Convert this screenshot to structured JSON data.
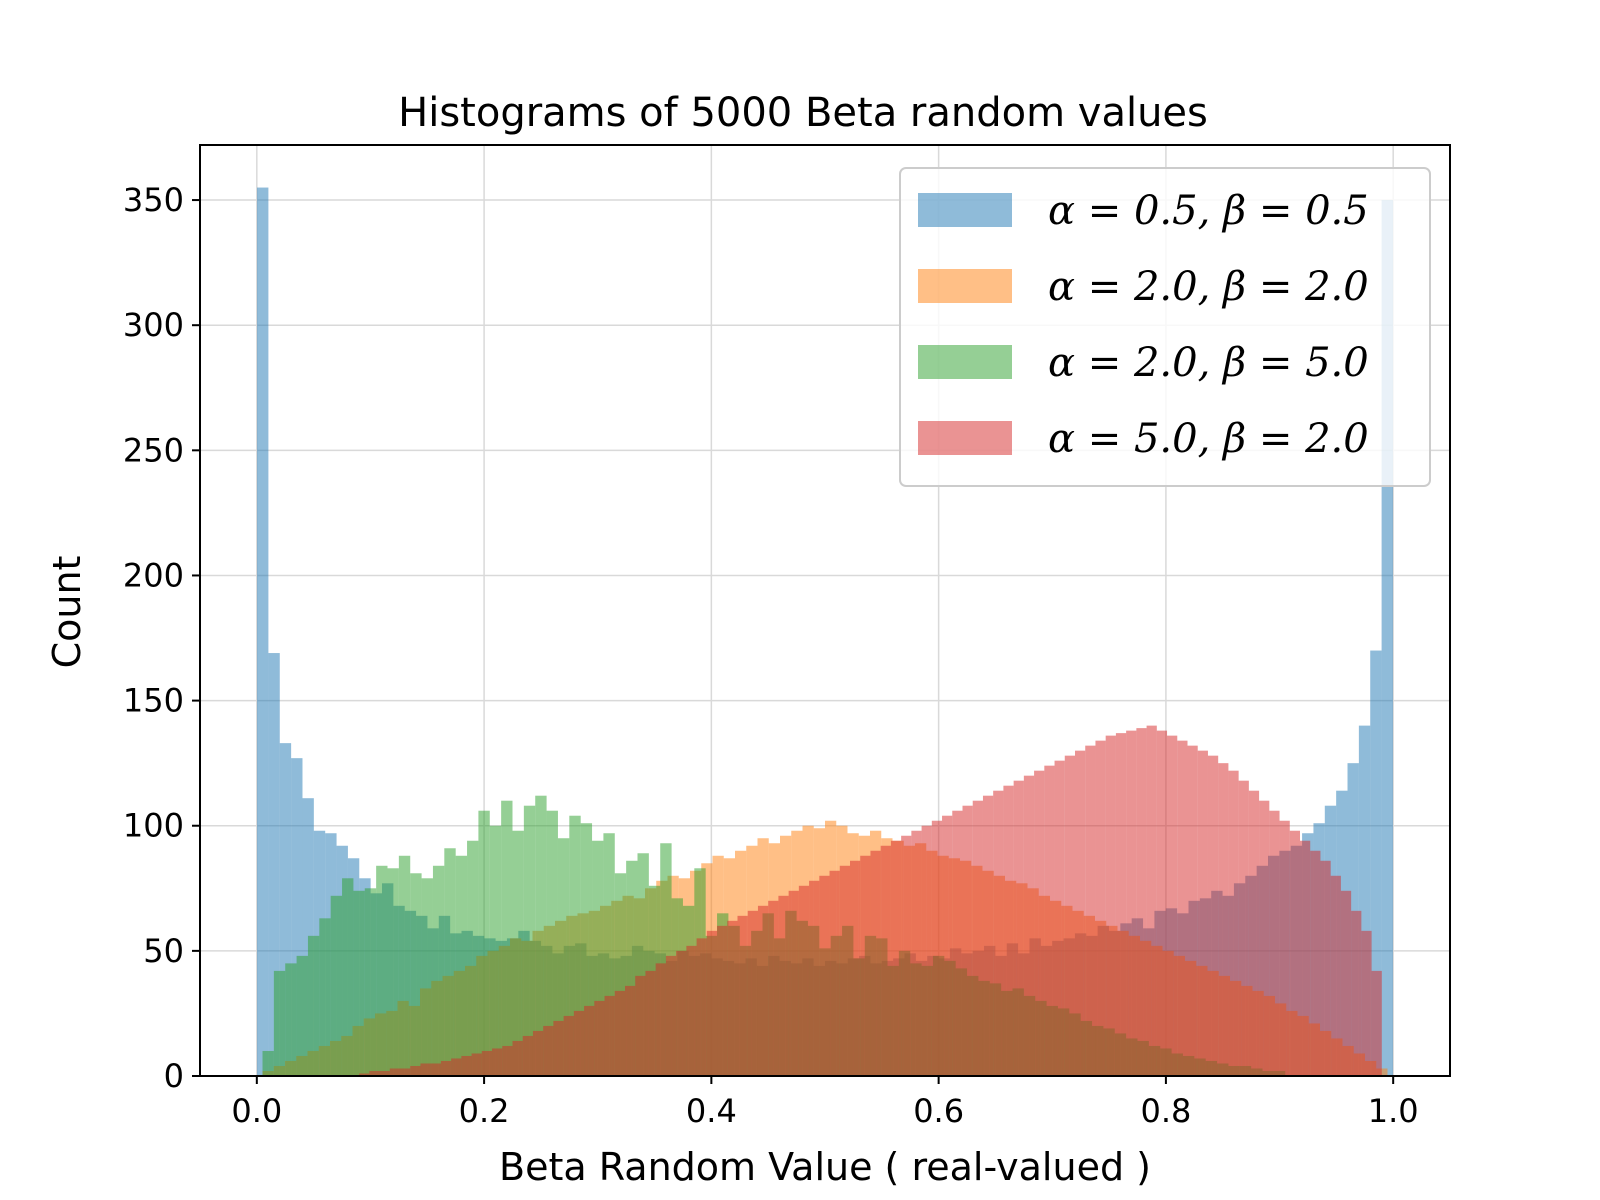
{
  "chart_data": {
    "type": "bar",
    "subtype": "histogram",
    "title": "Histograms of 5000 Beta random values",
    "xlabel": "Beta Random Value ( real-valued )",
    "ylabel": "Count",
    "xlim": [
      -0.05,
      1.05
    ],
    "ylim": [
      0,
      372
    ],
    "xticks": [
      "0.0",
      "0.2",
      "0.4",
      "0.6",
      "0.8",
      "1.0"
    ],
    "yticks": [
      "0",
      "50",
      "100",
      "150",
      "200",
      "250",
      "300",
      "350"
    ],
    "grid": true,
    "legend_position": "top-right",
    "bin_count": 100,
    "series": [
      {
        "name": "α = 0.5, β = 0.5",
        "color": "#1f77b4",
        "opacity": 0.5,
        "range": [
          0.0002,
          0.9998
        ],
        "values": [
          355,
          169,
          133,
          127,
          111,
          98,
          97,
          92,
          87,
          79,
          73,
          77,
          68,
          66,
          64,
          59,
          64,
          57,
          58,
          56,
          55,
          54,
          55,
          58,
          54,
          52,
          49,
          52,
          53,
          48,
          49,
          47,
          48,
          52,
          50,
          49,
          46,
          50,
          48,
          49,
          47,
          46,
          45,
          47,
          44,
          48,
          46,
          45,
          47,
          44,
          46,
          45,
          47,
          48,
          45,
          46,
          47,
          49,
          46,
          48,
          47,
          51,
          49,
          50,
          52,
          48,
          53,
          49,
          55,
          52,
          54,
          55,
          57,
          56,
          60,
          58,
          61,
          63,
          59,
          66,
          67,
          65,
          70,
          71,
          74,
          72,
          77,
          80,
          84,
          88,
          90,
          92,
          97,
          101,
          108,
          114,
          125,
          140,
          170,
          350
        ]
      },
      {
        "name": "α = 2.0, β = 2.0",
        "color": "#ff7f0e",
        "opacity": 0.5,
        "range": [
          0.005,
          0.995
        ],
        "values": [
          2,
          4,
          6,
          8,
          10,
          12,
          14,
          16,
          20,
          23,
          25,
          26,
          30,
          28,
          35,
          38,
          40,
          42,
          44,
          48,
          50,
          52,
          55,
          54,
          58,
          60,
          62,
          64,
          65,
          66,
          68,
          70,
          72,
          71,
          75,
          78,
          80,
          79,
          82,
          85,
          88,
          87,
          90,
          92,
          95,
          93,
          96,
          98,
          100,
          99,
          102,
          100,
          97,
          96,
          98,
          95,
          94,
          92,
          93,
          90,
          88,
          87,
          86,
          84,
          82,
          80,
          78,
          77,
          75,
          72,
          70,
          68,
          66,
          64,
          62,
          60,
          58,
          56,
          54,
          52,
          50,
          48,
          46,
          44,
          42,
          40,
          38,
          36,
          34,
          32,
          29,
          26,
          24,
          21,
          18,
          15,
          12,
          9,
          6,
          3
        ]
      },
      {
        "name": "α = 2.0, β = 5.0",
        "color": "#2ca02c",
        "opacity": 0.5,
        "range": [
          0.005,
          0.905
        ],
        "values": [
          10,
          42,
          45,
          48,
          56,
          63,
          72,
          79,
          74,
          75,
          84,
          83,
          88,
          81,
          79,
          84,
          91,
          88,
          94,
          106,
          100,
          110,
          98,
          108,
          112,
          106,
          95,
          104,
          101,
          94,
          97,
          81,
          86,
          89,
          76,
          93,
          71,
          68,
          83,
          56,
          65,
          60,
          52,
          58,
          65,
          55,
          66,
          62,
          60,
          51,
          56,
          60,
          47,
          56,
          55,
          44,
          50,
          45,
          44,
          48,
          46,
          43,
          40,
          38,
          37,
          34,
          35,
          32,
          30,
          28,
          27,
          25,
          22,
          20,
          19,
          17,
          15,
          14,
          12,
          11,
          9,
          8,
          7,
          6,
          5,
          4,
          4,
          3,
          2,
          2
        ]
      },
      {
        "name": "α = 5.0, β = 2.0",
        "color": "#d62728",
        "opacity": 0.5,
        "range": [
          0.09,
          0.99
        ],
        "values": [
          1,
          2,
          2,
          3,
          3,
          4,
          5,
          5,
          6,
          7,
          8,
          9,
          10,
          11,
          12,
          14,
          16,
          18,
          20,
          22,
          24,
          26,
          28,
          30,
          32,
          34,
          36,
          40,
          42,
          45,
          48,
          50,
          52,
          55,
          58,
          60,
          62,
          64,
          66,
          68,
          70,
          72,
          74,
          76,
          78,
          80,
          82,
          84,
          86,
          88,
          90,
          92,
          94,
          96,
          98,
          100,
          102,
          104,
          106,
          108,
          110,
          112,
          114,
          116,
          118,
          120,
          122,
          124,
          126,
          128,
          130,
          132,
          134,
          136,
          137,
          138,
          139,
          140,
          138,
          136,
          134,
          132,
          130,
          128,
          125,
          122,
          118,
          114,
          110,
          106,
          102,
          98,
          94,
          90,
          86,
          80,
          74,
          66,
          58,
          42
        ]
      }
    ]
  }
}
